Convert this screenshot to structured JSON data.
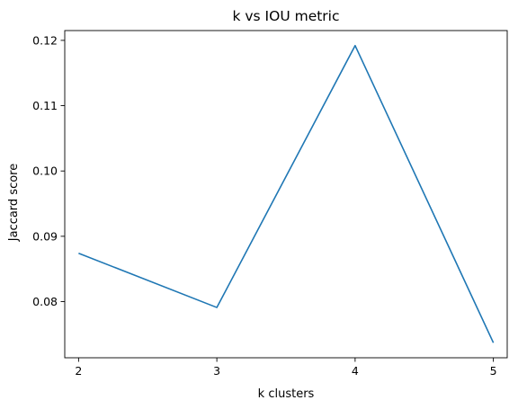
{
  "chart_data": {
    "type": "line",
    "title": "k vs IOU metric",
    "xlabel": "k clusters",
    "ylabel": "Jaccard score",
    "x": [
      2,
      3,
      4,
      5
    ],
    "series": [
      {
        "values": [
          0.0874,
          0.0791,
          0.1192,
          0.0737
        ],
        "color": "#1f77b4"
      }
    ],
    "xlim": [
      1.9,
      5.1
    ],
    "ylim": [
      0.0714,
      0.1215
    ],
    "xticks": [
      2,
      3,
      4,
      5
    ],
    "xtick_labels": [
      "2",
      "3",
      "4",
      "5"
    ],
    "yticks": [
      0.08,
      0.09,
      0.1,
      0.11,
      0.12
    ],
    "ytick_labels": [
      "0.08",
      "0.09",
      "0.10",
      "0.11",
      "0.12"
    ],
    "grid": false,
    "legend": false
  }
}
